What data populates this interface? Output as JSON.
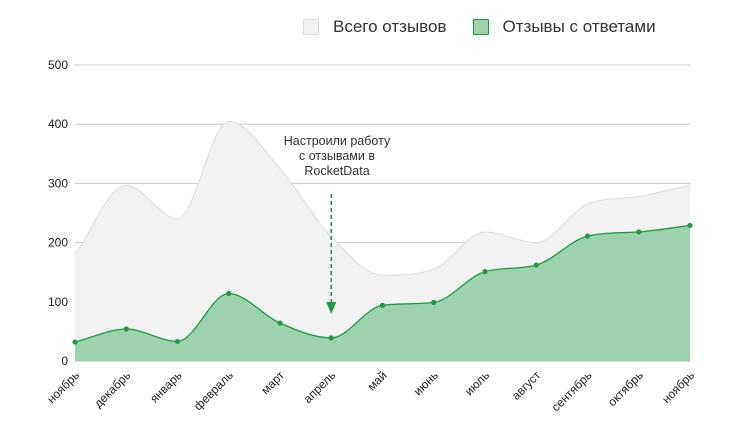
{
  "legend": {
    "total_label": "Всего отзывов",
    "replied_label": "Отзывы с ответами"
  },
  "annotation": {
    "lines": [
      "Настроили работу",
      "с отзывами в",
      "RocketData"
    ],
    "month": "апрель"
  },
  "colors": {
    "total_fill": "#f2f2f2",
    "total_stroke": "#dddddd",
    "replied_fill": "#9ed2ae",
    "replied_stroke": "#1f9a47",
    "arrow": "#1f9a47",
    "grid": "#cccccc",
    "axis_text": "#222222"
  },
  "chart_data": {
    "type": "area",
    "title": "",
    "xlabel": "",
    "ylabel": "",
    "ylim": [
      0,
      500
    ],
    "yticks": [
      0,
      100,
      200,
      300,
      400,
      500
    ],
    "grid": true,
    "legend_position": "top-right",
    "categories": [
      "ноябрь",
      "декабрь",
      "январь",
      "февраль",
      "март",
      "апрель",
      "май",
      "июнь",
      "июль",
      "август",
      "сентябрь",
      "октябрь",
      "ноябрь"
    ],
    "series": [
      {
        "name": "Всего отзывов",
        "values": [
          180,
          297,
          240,
          405,
          325,
          210,
          145,
          155,
          218,
          200,
          265,
          278,
          297
        ]
      },
      {
        "name": "Отзывы с ответами",
        "values": [
          32,
          54,
          33,
          114,
          64,
          39,
          94,
          99,
          151,
          162,
          211,
          218,
          229
        ]
      }
    ]
  }
}
